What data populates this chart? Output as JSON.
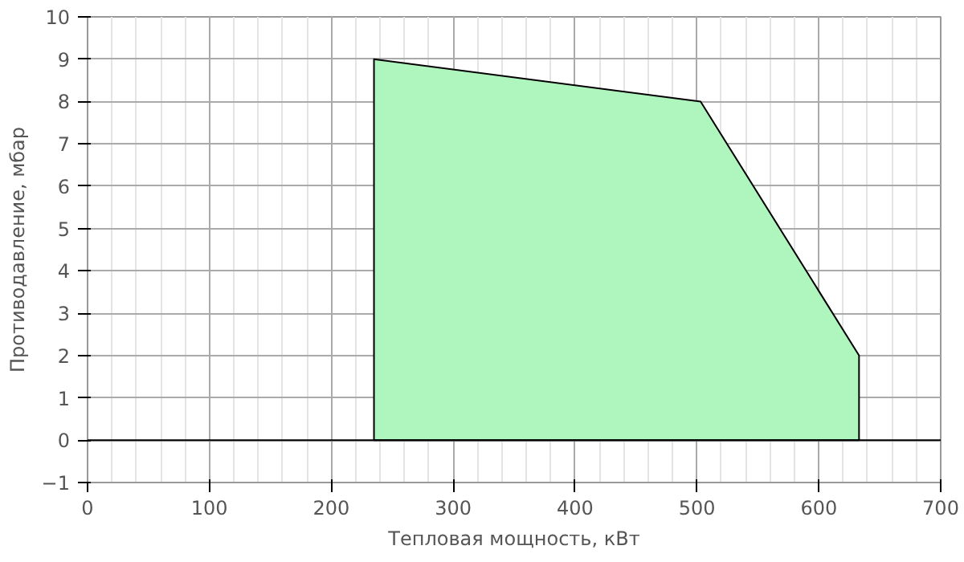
{
  "chart_data": {
    "type": "area",
    "xlabel": "Тепловая мощность, кВт",
    "ylabel": "Противодавление, мбар",
    "x": [
      235,
      503,
      633
    ],
    "series": [
      {
        "color": "#aff5be",
        "values": [
          9,
          8,
          2
        ]
      }
    ],
    "xlim": [
      0,
      700
    ],
    "xticks": [
      0,
      100,
      200,
      300,
      400,
      500,
      600,
      700
    ],
    "ylim": [
      -1,
      10
    ],
    "yticks": [
      -1,
      0,
      1,
      2,
      3,
      4,
      5,
      6,
      7,
      8,
      9,
      10
    ],
    "ref_lines": [
      {
        "axis": "y",
        "value": 0,
        "color": "#000000"
      }
    ],
    "grid": true
  }
}
